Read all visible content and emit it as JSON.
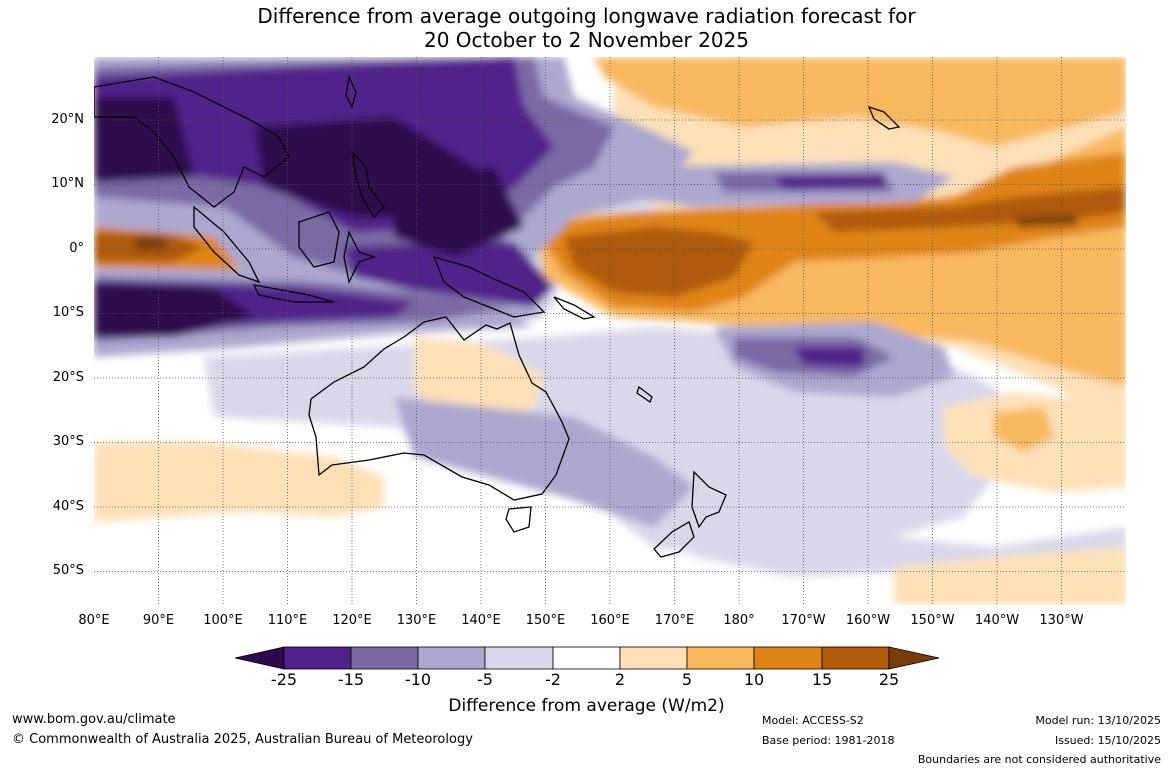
{
  "title_line1": "Difference from average outgoing longwave radiation forecast for",
  "title_line2": "20 October to 2 November 2025",
  "map": {
    "lat_labels": [
      "20°N",
      "10°N",
      "0°",
      "10°S",
      "20°S",
      "30°S",
      "40°S",
      "50°S"
    ],
    "lon_labels": [
      "80°E",
      "90°E",
      "100°E",
      "110°E",
      "120°E",
      "130°E",
      "140°E",
      "150°E",
      "160°E",
      "170°E",
      "180°",
      "170°W",
      "160°W",
      "150°W",
      "140°W",
      "130°W"
    ],
    "land_outline_color": "#000000",
    "grid_color": "#555555"
  },
  "colorbar": {
    "title": "Difference from average (W/m2)",
    "tick_labels": [
      "-25",
      "-15",
      "-10",
      "-5",
      "-2",
      "2",
      "5",
      "10",
      "15",
      "25"
    ],
    "colors": [
      "#2d0a4e",
      "#51228a",
      "#7b69a6",
      "#aca7cf",
      "#d8d8ea",
      "#ffffff",
      "#fde0b8",
      "#f8b860",
      "#e08418",
      "#b05a0c",
      "#7a3c0a"
    ]
  },
  "footer": {
    "website": "www.bom.gov.au/climate",
    "copyright": "© Commonwealth of Australia 2025, Australian Bureau of Meteorology",
    "model": "Model: ACCESS-S2",
    "base_period": "Base period: 1981-2018",
    "model_run": "Model run: 13/10/2025",
    "issued": "Issued: 15/10/2025",
    "disclaimer": "Boundaries are not considered authoritative"
  }
}
